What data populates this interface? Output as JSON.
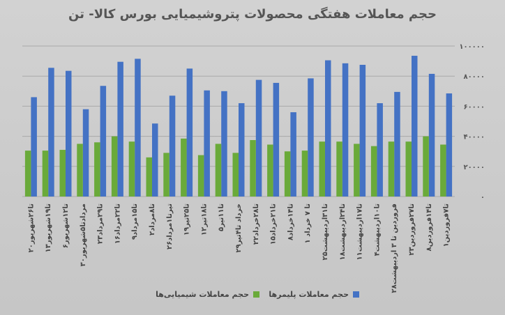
{
  "chart_data": {
    "type": "bar",
    "title": "حجم معاملات هفتگی محصولات پتروشیمیایی بورس کالا- تن",
    "categories": [
      "۱تا۷فروردین",
      "۸تا۱۴فروردین",
      "۲۳تا۲۷فروردین",
      "۲۸فروردین تا ۳ اردیبهشت",
      "۴تا۱۰اردیبهشت",
      "۱۱تا۱۷اردیبهشت",
      "۱۸تا۲۴اردیبهشت",
      "۲۵تا۳۱اردیبهشت",
      "۱ تا ۷ خرداد",
      "۸تا۱۴خرداد",
      "۱۵تا۲۱خرداد",
      "۲۲تا۲۸خرداد",
      "۲۹خرداد تا۴تیر",
      "۵تا۱۱تیر",
      "۱۲تا۱۸تیر",
      "۱۹تا۲۵تیر",
      "۲۶تیرتا۱مرداد",
      "۲تا۸مرداد",
      "۹تا۱۵مرداد",
      "۱۶تا۲۲مرداد",
      "۲۳تا۲۹مرداد",
      "۳۰مردادتا۵شهریور",
      "۶تا۱۲شهریور",
      "۱۳تا۱۹شهریور",
      "۲۰تا۲۶شهریور"
    ],
    "series": [
      {
        "name": "حجم معاملات پلیمرها",
        "color": "#4472c4",
        "values": [
          68500,
          81500,
          93500,
          69500,
          62000,
          87500,
          88500,
          90500,
          78500,
          56000,
          75500,
          77500,
          62000,
          70000,
          70500,
          85000,
          67000,
          48500,
          91500,
          89500,
          73500,
          58000,
          83500,
          85500,
          66000
        ]
      },
      {
        "name": "حجم معاملات شیمیایی‌ها",
        "color": "#6aaa3a",
        "values": [
          34500,
          40000,
          36500,
          36500,
          33500,
          35000,
          36500,
          36500,
          30500,
          30000,
          34500,
          37500,
          29000,
          35000,
          27500,
          38500,
          29000,
          26000,
          36500,
          40000,
          36000,
          35000,
          31000,
          30500,
          30500
        ]
      }
    ],
    "ylim": [
      0,
      100000
    ],
    "yticks": [
      0,
      20000,
      40000,
      60000,
      80000,
      100000
    ],
    "ytick_labels": [
      "۰",
      "۲۰۰۰۰",
      "۴۰۰۰۰",
      "۶۰۰۰۰",
      "۸۰۰۰۰",
      "۱۰۰۰۰۰"
    ],
    "yaxis_side": "right",
    "x_direction": "right-to-left",
    "grid": true,
    "legend_position": "bottom"
  }
}
